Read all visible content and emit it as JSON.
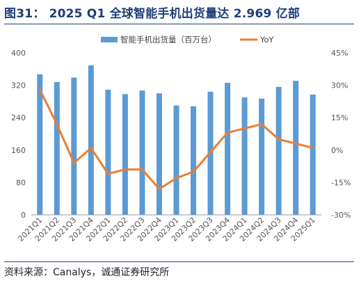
{
  "header": {
    "title": "图31：  2025 Q1 全球智能手机出货量达 2.969 亿部"
  },
  "footer": {
    "source": "资料来源：Canalys，诚通证券研究所"
  },
  "chart_data": {
    "type": "bar",
    "title": "",
    "categories": [
      "2021Q1",
      "2021Q2",
      "2021Q3",
      "2021Q4",
      "2022Q1",
      "2022Q2",
      "2022Q3",
      "2022Q4",
      "2023Q1",
      "2023Q2",
      "2023Q3",
      "2023Q4",
      "2024Q1",
      "2024Q2",
      "2024Q3",
      "2024Q4",
      "2025Q1"
    ],
    "series": [
      {
        "name": "智能手机出货量（百万台）",
        "type": "bar",
        "axis": "left",
        "color": "#5b9bd5",
        "values": [
          347,
          328,
          339,
          369,
          309,
          298,
          307,
          300,
          270,
          268,
          304,
          326,
          290,
          287,
          316,
          331,
          297
        ]
      },
      {
        "name": "YoY",
        "type": "line",
        "axis": "right",
        "color": "#ed7d31",
        "values": [
          28,
          12,
          -6,
          1,
          -11,
          -9,
          -9,
          -18,
          -13,
          -10,
          -1,
          8,
          10,
          12,
          5,
          3,
          1
        ]
      }
    ],
    "left_axis": {
      "min": 0,
      "max": 400,
      "ticks": [
        0,
        80,
        160,
        240,
        320,
        400
      ]
    },
    "right_axis": {
      "min": -30,
      "max": 45,
      "ticks": [
        "-30%",
        "-15%",
        "0%",
        "15%",
        "30%",
        "45%"
      ]
    },
    "legend_position": "top",
    "grid": false
  }
}
